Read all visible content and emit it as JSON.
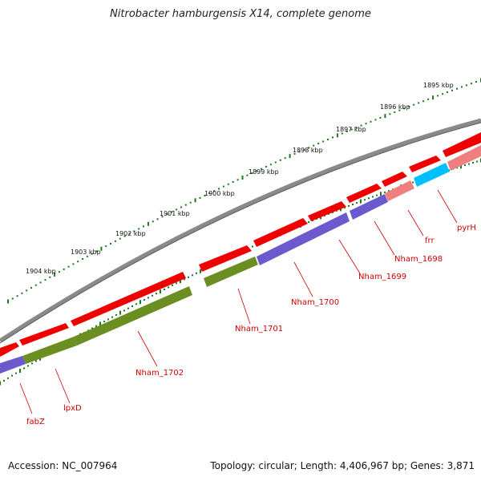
{
  "title": "Nitrobacter hamburgensis X14, complete genome",
  "footer": {
    "accession": "Accession: NC_007964",
    "topology": "Topology: circular; Length: 4,406,967 bp; Genes: 3,871"
  },
  "ruler": {
    "labels": [
      "1895 kbp",
      "1896 kbp",
      "1897 kbp",
      "1898 kbp",
      "1899 kbp",
      "1900 kbp",
      "1901 kbp",
      "1902 kbp",
      "1903 kbp",
      "1904 kbp"
    ]
  },
  "gene_labels": [
    "pyrH",
    "frr",
    "Nham_1698",
    "Nham_1699",
    "Nham_1700",
    "Nham_1701",
    "Nham_1702",
    "lpxD",
    "fabZ"
  ],
  "colors": {
    "backbone": "#808080",
    "cds_red": "#ee0000",
    "cds_pink": "#f08080",
    "cds_purple": "#6a5acd",
    "cds_olive": "#6b8e23",
    "cds_cyan": "#00bfff",
    "tick_green": "#1a7a1a",
    "label_red": "#d00000"
  },
  "icons": []
}
